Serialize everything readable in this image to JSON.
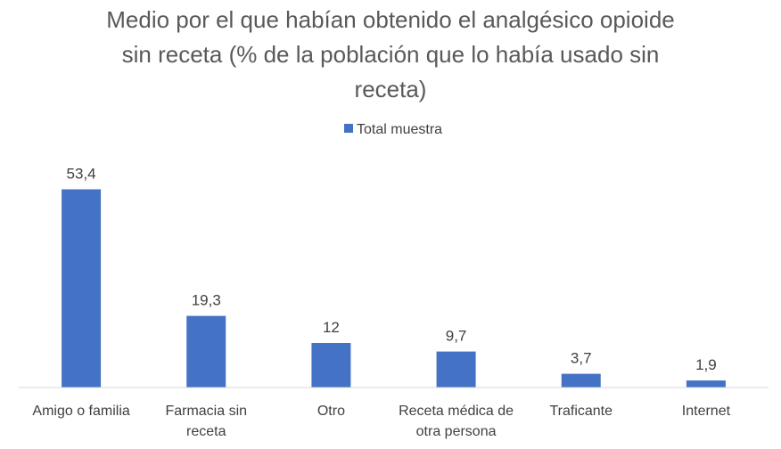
{
  "chart_data": {
    "type": "bar",
    "title_lines": [
      "Medio por el que habían obtenido el analgésico opioide",
      "sin receta (% de la población que lo había usado sin",
      "receta)"
    ],
    "categories": [
      [
        "Amigo o familia"
      ],
      [
        "Farmacia sin",
        "receta"
      ],
      [
        "Otro"
      ],
      [
        "Receta médica de",
        "otra persona"
      ],
      [
        "Traficante"
      ],
      [
        "Internet"
      ]
    ],
    "series": [
      {
        "name": "Total muestra",
        "values": [
          53.4,
          19.3,
          12,
          9.7,
          3.7,
          1.9
        ],
        "value_labels": [
          "53,4",
          "19,3",
          "12",
          "9,7",
          "3,7",
          "1,9"
        ]
      }
    ],
    "ylim": [
      0,
      60
    ],
    "legend_position": "top",
    "grid": false,
    "bar_color": "#4472C4",
    "axis_color": "#D9D9D9",
    "text_color": "#404040",
    "title_color": "#595959"
  }
}
